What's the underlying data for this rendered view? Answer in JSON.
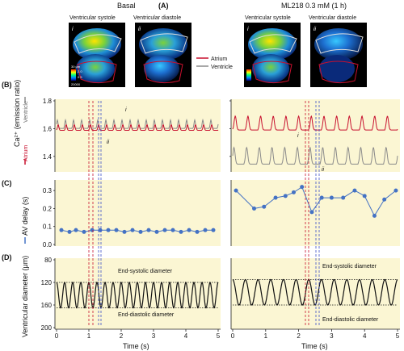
{
  "panel_labels": {
    "a": "(A)",
    "b": "(B)",
    "c": "(C)",
    "d": "(D)"
  },
  "conditions": {
    "left": "Basal",
    "right": "ML218 0.3 mM (1 h)"
  },
  "phases": {
    "systole": "Ventricular systole",
    "diastole": "Ventricular diastole"
  },
  "image_tags": {
    "i": "i",
    "ii": "ii"
  },
  "colorbar": {
    "scale": "30 μm",
    "top": "2.0",
    "mid": "0.5",
    "bottom": "20000"
  },
  "legend": {
    "atrium": "Atrium",
    "ventricle": "Ventricle",
    "atrium_color": "#c8102e",
    "ventricle_color": "#8a8a8a"
  },
  "ylabels": {
    "b": "Ca²⁺ (emission ratio)",
    "b_atrium": "Atrium",
    "b_ventricle": "Ventricle",
    "c": "AV delay (s)",
    "d": "Ventricular diameter (μm)"
  },
  "annotations": {
    "end_systolic": "End-systolic diameter",
    "end_diastolic": "End-diastolic diameter",
    "i": "i",
    "ii": "ii"
  },
  "xlabel": "Time (s)",
  "chart_data": [
    {
      "type": "line",
      "panel": "B",
      "ylabel": "Ca²⁺ (emission ratio)",
      "ylim": [
        1.3,
        1.8
      ],
      "yticks": [
        "1.8",
        "1.6",
        "1.4"
      ],
      "yticks_right": [
        "1.8",
        "1.6",
        "1.4"
      ],
      "xlim": [
        0,
        5
      ],
      "left": {
        "atrium": {
          "baseline": 1.6,
          "amp": 0.04,
          "beats": 20
        },
        "ventricle": {
          "baseline": 1.62,
          "amp": 0.06,
          "beats": 20
        }
      },
      "right": {
        "atrium": {
          "baseline": 1.62,
          "amp": 0.1,
          "beats": 13
        },
        "ventricle": {
          "baseline": 1.38,
          "amp": 0.12,
          "beats": 13
        }
      }
    },
    {
      "type": "scatter",
      "panel": "C",
      "ylabel": "AV delay (s)",
      "ylim": [
        0.0,
        0.35
      ],
      "yticks": [
        "0.3",
        "0.2",
        "0.1",
        "0.0"
      ],
      "xlim": [
        0,
        5
      ],
      "left": {
        "x": [
          0.15,
          0.4,
          0.6,
          0.85,
          1.1,
          1.35,
          1.6,
          1.85,
          2.1,
          2.35,
          2.6,
          2.85,
          3.1,
          3.35,
          3.6,
          3.85,
          4.1,
          4.35,
          4.6,
          4.85
        ],
        "y": [
          0.08,
          0.07,
          0.08,
          0.07,
          0.08,
          0.08,
          0.08,
          0.08,
          0.07,
          0.08,
          0.07,
          0.08,
          0.07,
          0.08,
          0.08,
          0.07,
          0.08,
          0.07,
          0.08,
          0.08
        ]
      },
      "right": {
        "x": [
          0.1,
          0.65,
          0.95,
          1.3,
          1.6,
          1.85,
          2.1,
          2.4,
          2.7,
          3.0,
          3.35,
          3.7,
          4.0,
          4.3,
          4.6,
          4.95
        ],
        "y": [
          0.3,
          0.2,
          0.21,
          0.26,
          0.27,
          0.29,
          0.32,
          0.18,
          0.26,
          0.26,
          0.26,
          0.3,
          0.27,
          0.16,
          0.25,
          0.3
        ]
      }
    },
    {
      "type": "line",
      "panel": "D",
      "ylabel": "Ventricular diameter (μm)",
      "ylim": [
        200,
        80
      ],
      "yticks": [
        "80",
        "120",
        "160",
        "200"
      ],
      "xticks": [
        "0",
        "1",
        "2",
        "3",
        "4",
        "5"
      ],
      "xlim": [
        0,
        5
      ],
      "left": {
        "systolic": 120,
        "diastolic": 165,
        "beats": 20
      },
      "right": {
        "systolic": 115,
        "diastolic": 160,
        "beats": 13
      }
    }
  ]
}
